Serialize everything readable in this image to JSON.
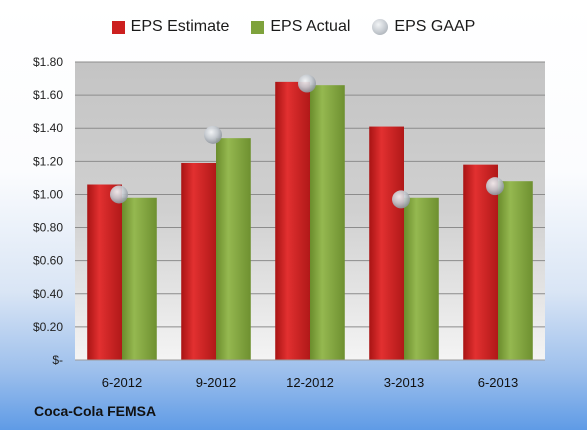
{
  "company": "Coca-Cola FEMSA",
  "chart_data": {
    "type": "bar",
    "categories": [
      "6-2012",
      "9-2012",
      "12-2012",
      "3-2013",
      "6-2013"
    ],
    "series": [
      {
        "name": "EPS Estimate",
        "kind": "bar",
        "color": "#cc1f1f",
        "values": [
          1.06,
          1.19,
          1.68,
          1.41,
          1.18
        ]
      },
      {
        "name": "EPS Actual",
        "kind": "bar",
        "color": "#7ea23c",
        "values": [
          0.98,
          1.34,
          1.66,
          0.98,
          1.08
        ]
      },
      {
        "name": "EPS GAAP",
        "kind": "marker",
        "color": "#c0c5cc",
        "values": [
          1.0,
          1.36,
          1.67,
          0.97,
          1.05
        ]
      }
    ],
    "ylim": [
      0,
      1.8
    ],
    "yticks": [
      "$-",
      "$0.20",
      "$0.40",
      "$0.60",
      "$0.80",
      "$1.00",
      "$1.20",
      "$1.40",
      "$1.60",
      "$1.80"
    ],
    "grid": true,
    "legend": "top-center"
  }
}
